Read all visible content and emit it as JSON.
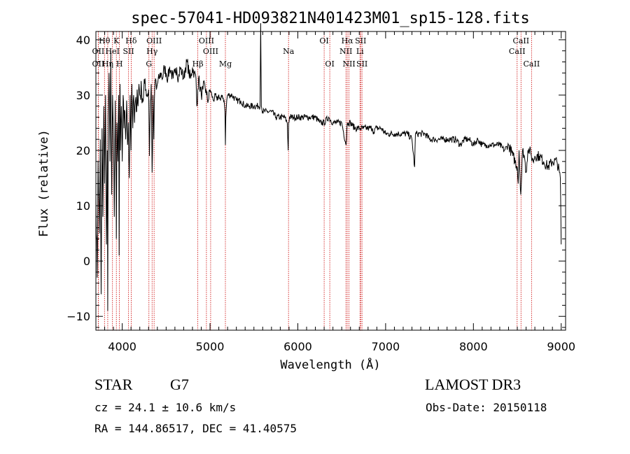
{
  "chart_data": {
    "type": "line",
    "title": "spec-57041-HD093821N401423M01_sp15-128.fits",
    "xlabel": "Wavelength (Å)",
    "ylabel": "Flux (relative)",
    "xlim": [
      3700,
      9050
    ],
    "ylim": [
      -12.5,
      41.5
    ],
    "x_ticks": [
      4000,
      5000,
      6000,
      7000,
      8000,
      9000
    ],
    "x_tick_labels": [
      "4000",
      "5000",
      "6000",
      "7000",
      "8000",
      "9000"
    ],
    "y_ticks": [
      -10,
      0,
      10,
      20,
      30,
      40
    ],
    "y_tick_labels": [
      "−10",
      "0",
      "10",
      "20",
      "30",
      "40"
    ],
    "series": [
      {
        "name": "flux",
        "x": [
          3700,
          3715,
          3725,
          3740,
          3750,
          3760,
          3770,
          3780,
          3790,
          3800,
          3810,
          3820,
          3830,
          3835,
          3840,
          3850,
          3860,
          3870,
          3880,
          3890,
          3900,
          3910,
          3920,
          3930,
          3933,
          3940,
          3950,
          3960,
          3965,
          3970,
          3975,
          3980,
          3990,
          4000,
          4010,
          4020,
          4030,
          4040,
          4050,
          4060,
          4070,
          4080,
          4090,
          4100,
          4105,
          4110,
          4120,
          4130,
          4140,
          4150,
          4160,
          4170,
          4180,
          4190,
          4200,
          4220,
          4240,
          4260,
          4280,
          4300,
          4310,
          4320,
          4330,
          4340,
          4345,
          4350,
          4360,
          4370,
          4380,
          4390,
          4400,
          4420,
          4440,
          4460,
          4480,
          4500,
          4520,
          4540,
          4560,
          4580,
          4600,
          4620,
          4640,
          4660,
          4680,
          4700,
          4720,
          4740,
          4760,
          4780,
          4800,
          4820,
          4840,
          4850,
          4861,
          4870,
          4880,
          4900,
          4920,
          4940,
          4960,
          4980,
          5000,
          5020,
          5040,
          5060,
          5080,
          5100,
          5120,
          5140,
          5160,
          5170,
          5175,
          5180,
          5190,
          5200,
          5250,
          5300,
          5350,
          5400,
          5450,
          5500,
          5550,
          5570,
          5577,
          5585,
          5600,
          5650,
          5700,
          5750,
          5800,
          5850,
          5880,
          5890,
          5896,
          5905,
          5950,
          6000,
          6050,
          6100,
          6150,
          6200,
          6250,
          6300,
          6350,
          6400,
          6450,
          6500,
          6550,
          6563,
          6575,
          6600,
          6650,
          6700,
          6750,
          6800,
          6850,
          6870,
          6880,
          6900,
          6950,
          7000,
          7050,
          7100,
          7150,
          7200,
          7250,
          7300,
          7330,
          7340,
          7360,
          7400,
          7450,
          7500,
          7550,
          7600,
          7650,
          7700,
          7750,
          7800,
          7850,
          7900,
          7950,
          8000,
          8050,
          8100,
          8150,
          8200,
          8250,
          8300,
          8350,
          8400,
          8450,
          8500,
          8510,
          8520,
          8540,
          8560,
          8580,
          8600,
          8620,
          8640,
          8660,
          8680,
          8700,
          8750,
          8800,
          8850,
          8900,
          8950,
          8980,
          8990,
          9000
        ],
        "values": [
          12,
          -3,
          18,
          5,
          22,
          -6,
          24,
          8,
          28,
          14,
          30,
          3,
          20,
          -9,
          26,
          34,
          18,
          38,
          12,
          30,
          22,
          8,
          29,
          16,
          4,
          25,
          18,
          30,
          1,
          24,
          32,
          20,
          28,
          18,
          30,
          24,
          27,
          22,
          29,
          21,
          25,
          15,
          30,
          20,
          28,
          32,
          24,
          30,
          25,
          29,
          27,
          31,
          28,
          32,
          30,
          31,
          29,
          33,
          30,
          31,
          19,
          29,
          32,
          16,
          20,
          30,
          22,
          31,
          33,
          31,
          32,
          33,
          34,
          33,
          35,
          34,
          33,
          35,
          34,
          33,
          34,
          35,
          33,
          35,
          34,
          33,
          35,
          36,
          34,
          33,
          35,
          34,
          33,
          28,
          31,
          33,
          32,
          30,
          31,
          32,
          30,
          29,
          31,
          30,
          29,
          30,
          29,
          30,
          29,
          30,
          29,
          27,
          21,
          26,
          29,
          30,
          30,
          29,
          29,
          28,
          28,
          28,
          28,
          28,
          43,
          28,
          27,
          27,
          27,
          26,
          26,
          26,
          25,
          20,
          25,
          26,
          26,
          26,
          26,
          26,
          26,
          26,
          25,
          25,
          26,
          25,
          25,
          25,
          21,
          25,
          25,
          25,
          24,
          24,
          24,
          24,
          24,
          23,
          24,
          24,
          24,
          23,
          23,
          23,
          23,
          23,
          23,
          22,
          17,
          23,
          23,
          23,
          23,
          22,
          22,
          22,
          22,
          22,
          22,
          22,
          21,
          22,
          22,
          21,
          22,
          21,
          21,
          21,
          21,
          21,
          20,
          21,
          19,
          17,
          14,
          20,
          12,
          20,
          19,
          16,
          20,
          20,
          19,
          18,
          19,
          19,
          18,
          17,
          18,
          18,
          16,
          15,
          3
        ]
      }
    ],
    "annotations": [
      {
        "label": "Hθ",
        "x": 3798,
        "row": 1
      },
      {
        "label": "K",
        "x": 3933,
        "row": 1
      },
      {
        "label": "Hδ",
        "x": 4102,
        "row": 1
      },
      {
        "label": "OII",
        "x": 3727,
        "row": 2
      },
      {
        "label": "HeI",
        "x": 3889,
        "row": 2
      },
      {
        "label": "SII",
        "x": 4072,
        "row": 2
      },
      {
        "label": "OII",
        "x": 3727,
        "row": 3
      },
      {
        "label": "Hη",
        "x": 3835,
        "row": 3
      },
      {
        "label": "H",
        "x": 3968,
        "row": 3
      },
      {
        "label": "OIII",
        "x": 4363,
        "row": 1
      },
      {
        "label": "Hγ",
        "x": 4340,
        "row": 2
      },
      {
        "label": "G",
        "x": 4304,
        "row": 3
      },
      {
        "label": "Hβ",
        "x": 4861,
        "row": 3
      },
      {
        "label": "OIII",
        "x": 4959,
        "row": 1
      },
      {
        "label": "OIII",
        "x": 5007,
        "row": 2
      },
      {
        "label": "Mg",
        "x": 5175,
        "row": 3
      },
      {
        "label": "Na",
        "x": 5894,
        "row": 2
      },
      {
        "label": "OI",
        "x": 6300,
        "row": 1
      },
      {
        "label": "OI",
        "x": 6364,
        "row": 3
      },
      {
        "label": "Hα",
        "x": 6563,
        "row": 1
      },
      {
        "label": "NII",
        "x": 6548,
        "row": 2
      },
      {
        "label": "NII",
        "x": 6583,
        "row": 3
      },
      {
        "label": "SII",
        "x": 6716,
        "row": 1
      },
      {
        "label": "Li",
        "x": 6708,
        "row": 2
      },
      {
        "label": "SII",
        "x": 6731,
        "row": 3
      },
      {
        "label": "CaII",
        "x": 8542,
        "row": 1
      },
      {
        "label": "CaII",
        "x": 8498,
        "row": 2
      },
      {
        "label": "CaII",
        "x": 8662,
        "row": 3
      }
    ]
  },
  "info": {
    "object_type": "STAR",
    "subclass": "G7",
    "survey": "LAMOST DR3",
    "cz": "cz = 24.1 ± 10.6 km/s",
    "obs_date": "Obs-Date: 20150118",
    "coords": "RA = 144.86517, DEC =  41.40575"
  },
  "colors": {
    "spectrum": "#000000",
    "line_markers": "#cc0000",
    "axes": "#000000"
  }
}
